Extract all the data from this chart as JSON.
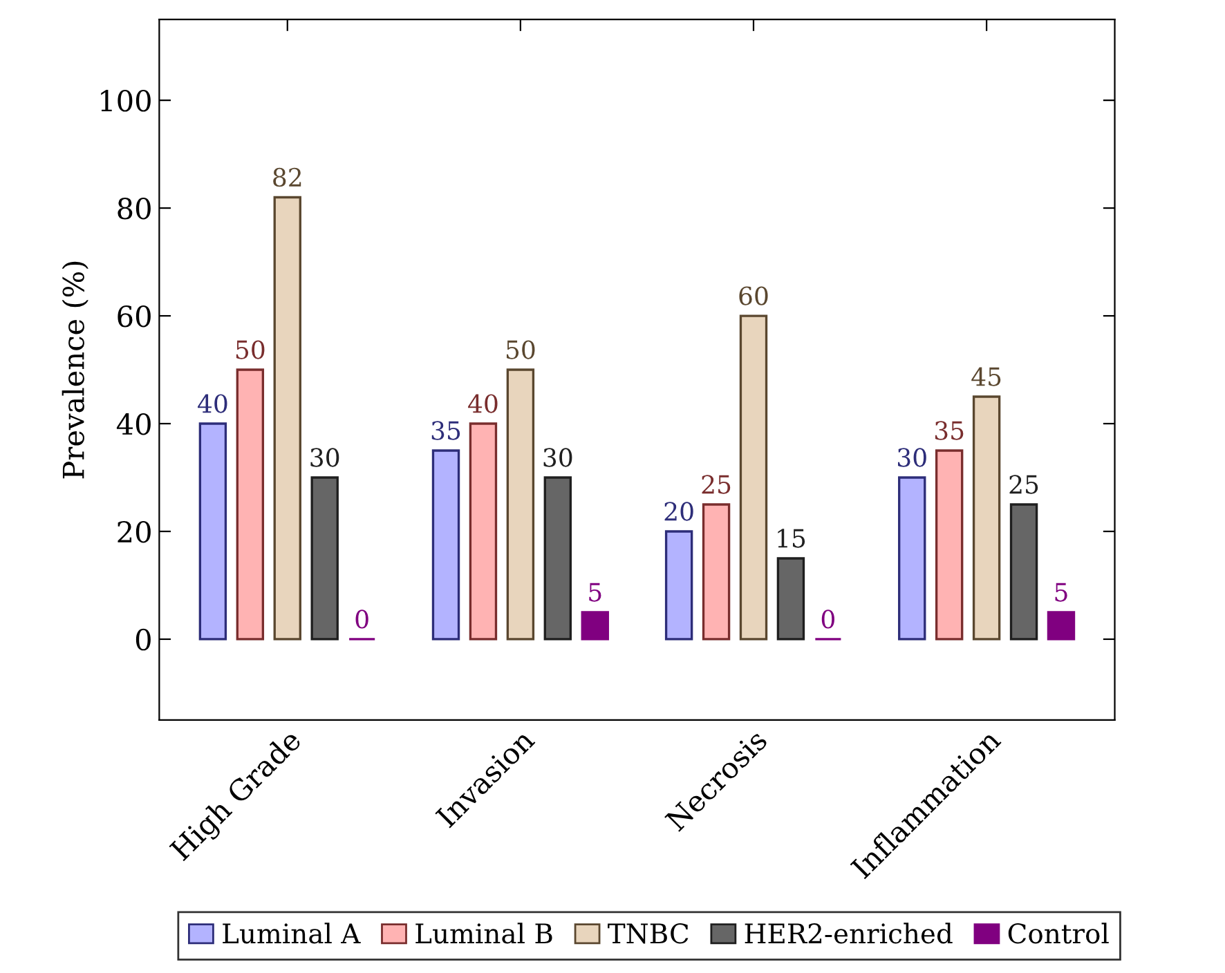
{
  "chart_data": {
    "type": "bar",
    "ylabel": "Prevalence (%)",
    "categories": [
      "High Grade",
      "Invasion",
      "Necrosis",
      "Inflammation"
    ],
    "series": [
      {
        "name": "Luminal A",
        "color": "#b3b3ff",
        "values": [
          40,
          35,
          20,
          30
        ]
      },
      {
        "name": "Luminal B",
        "color": "#ffb3b3",
        "values": [
          50,
          40,
          25,
          35
        ]
      },
      {
        "name": "TNBC",
        "color": "#e8d5bd",
        "values": [
          82,
          50,
          60,
          45
        ]
      },
      {
        "name": "HER2-enriched",
        "color": "#666666",
        "values": [
          30,
          30,
          15,
          25
        ]
      },
      {
        "name": "Control",
        "color": "#800080",
        "values": [
          0,
          5,
          0,
          5
        ]
      }
    ],
    "ylim": [
      -15,
      115
    ],
    "yticks": [
      0,
      20,
      40,
      60,
      80,
      100
    ],
    "data_labels": true,
    "grid": false,
    "legend": "bottom"
  }
}
